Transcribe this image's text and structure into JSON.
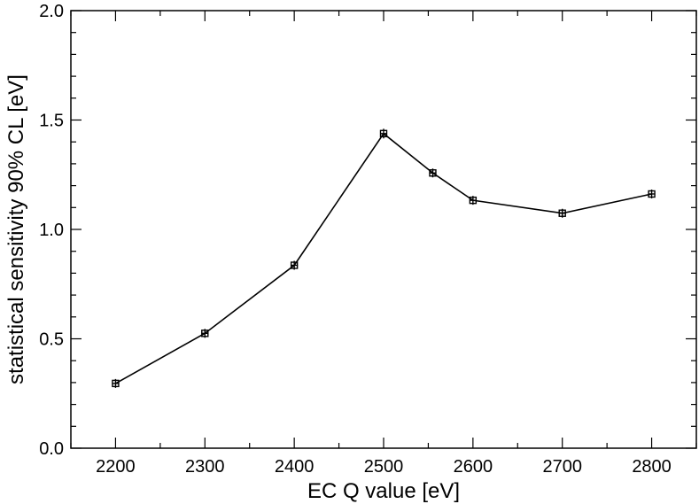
{
  "chart_data": {
    "type": "line",
    "title": "",
    "xlabel": "EC Q value [eV]",
    "ylabel": "statistical sensitivity 90% CL [eV]",
    "xlim": [
      2150,
      2850
    ],
    "ylim": [
      0.0,
      2.0
    ],
    "x_ticks": [
      2200,
      2300,
      2400,
      2500,
      2600,
      2700,
      2800
    ],
    "x_tick_labels": [
      "2200",
      "2300",
      "2400",
      "2500",
      "2600",
      "2700",
      "2800"
    ],
    "y_ticks": [
      0.0,
      0.5,
      1.0,
      1.5,
      2.0
    ],
    "y_tick_labels": [
      "0.0",
      "0.5",
      "1.0",
      "1.5",
      "2.0"
    ],
    "x_minor_step": 50,
    "y_minor_step": 0.1,
    "grid": false,
    "marker": "open-square",
    "series": [
      {
        "x": [
          2200,
          2300,
          2400,
          2500,
          2555,
          2600,
          2700,
          2800
        ],
        "y": [
          0.296,
          0.525,
          0.836,
          1.438,
          1.258,
          1.133,
          1.074,
          1.162
        ],
        "yerr": [
          0.005,
          0.008,
          0.01,
          0.022,
          0.015,
          0.014,
          0.012,
          0.015
        ]
      }
    ],
    "colors": {
      "line": "#000000",
      "axis": "#000000",
      "background": "#ffffff"
    }
  }
}
